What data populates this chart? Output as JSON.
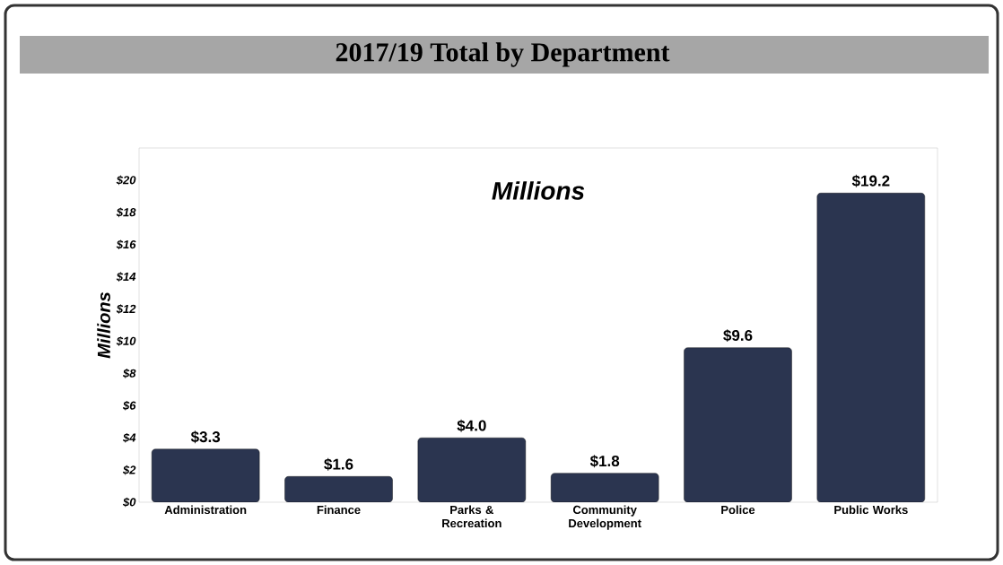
{
  "chart_data": {
    "type": "bar",
    "title": "2017/19 Total by Department",
    "ylabel": "Millions",
    "annotations": [
      "Millions"
    ],
    "categories": [
      "Administration",
      "Finance",
      "Parks & Recreation",
      "Community Development",
      "Police",
      "Public Works"
    ],
    "values": [
      3.3,
      1.6,
      4.0,
      1.8,
      9.6,
      19.2
    ],
    "value_labels": [
      "$3.3",
      "$1.6",
      "$4.0",
      "$1.8",
      "$9.6",
      "$19.2"
    ],
    "color": "#2b3550",
    "ylim": [
      0,
      22
    ],
    "yticks": [
      {
        "value": 0,
        "label": "$0"
      },
      {
        "value": 2,
        "label": "$2"
      },
      {
        "value": 4,
        "label": "$4"
      },
      {
        "value": 6,
        "label": "$6"
      },
      {
        "value": 8,
        "label": "$8"
      },
      {
        "value": 10,
        "label": "$10"
      },
      {
        "value": 12,
        "label": "$12"
      },
      {
        "value": 14,
        "label": "$14"
      },
      {
        "value": 16,
        "label": "$16"
      },
      {
        "value": 18,
        "label": "$18"
      },
      {
        "value": 20,
        "label": "$20"
      }
    ]
  }
}
